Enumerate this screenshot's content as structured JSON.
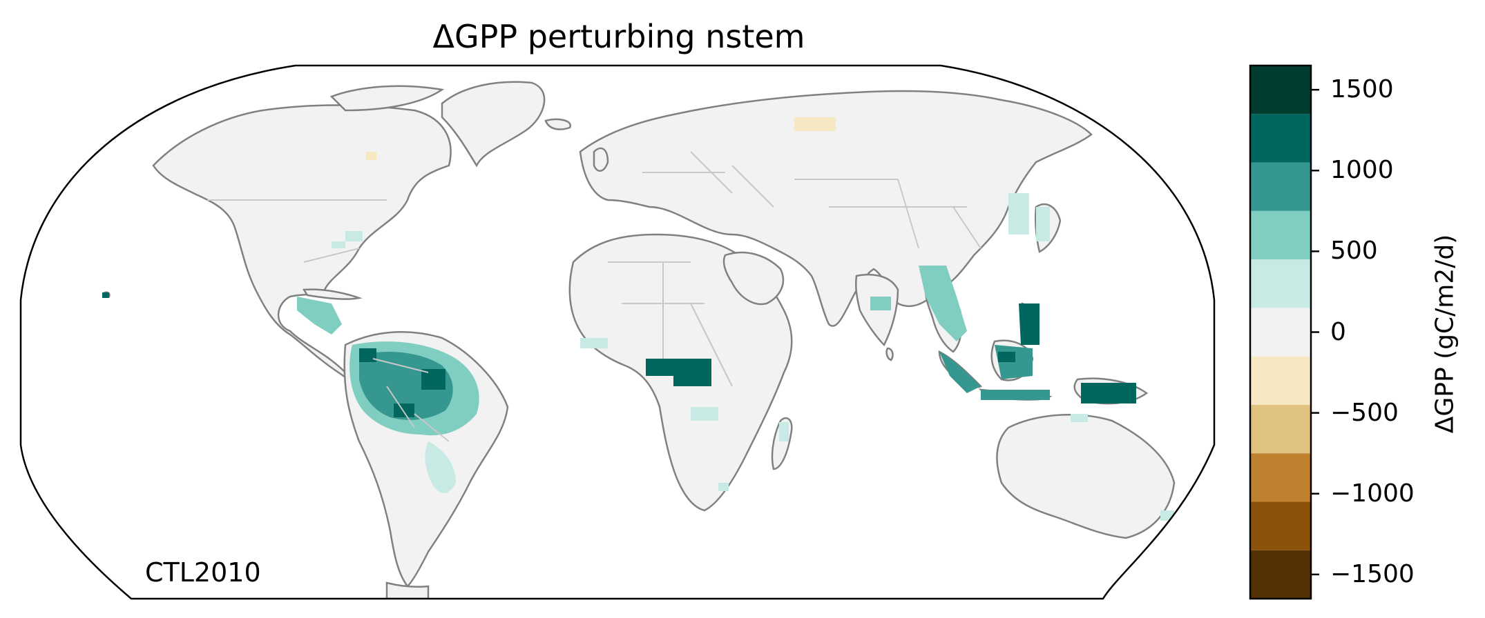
{
  "title": "ΔGPP perturbing nstem",
  "map_label": "CTL2010",
  "projection": "Robinson",
  "map": {
    "land_color": "#f2f2f2",
    "coastline_color": "#808080",
    "border_color": "#c8c8c8",
    "frame_color": "#000000"
  },
  "colorbar": {
    "label": "ΔGPP (gC/m2/d)",
    "range": [
      -1650,
      1650
    ],
    "levels": [
      {
        "from": -1650,
        "to": -1350,
        "color": "#543005"
      },
      {
        "from": -1350,
        "to": -1050,
        "color": "#8c510a"
      },
      {
        "from": -1050,
        "to": -750,
        "color": "#bf812d"
      },
      {
        "from": -750,
        "to": -450,
        "color": "#dfc27d"
      },
      {
        "from": -450,
        "to": -150,
        "color": "#f6e8c3"
      },
      {
        "from": -150,
        "to": 150,
        "color": "#f2f2f2"
      },
      {
        "from": 150,
        "to": 450,
        "color": "#c7eae5"
      },
      {
        "from": 450,
        "to": 750,
        "color": "#80cdc1"
      },
      {
        "from": 750,
        "to": 1050,
        "color": "#35978f"
      },
      {
        "from": 1050,
        "to": 1350,
        "color": "#01665e"
      },
      {
        "from": 1350,
        "to": 1650,
        "color": "#003c30"
      }
    ],
    "ticks": [
      {
        "value": 1500,
        "label": "1500"
      },
      {
        "value": 1000,
        "label": "1000"
      },
      {
        "value": 500,
        "label": "500"
      },
      {
        "value": 0,
        "label": "0"
      },
      {
        "value": -500,
        "label": "−500"
      },
      {
        "value": -1000,
        "label": "−1000"
      },
      {
        "value": -1500,
        "label": "−1500"
      }
    ]
  },
  "anomaly_regions": [
    {
      "region": "Amazon core",
      "value": 900
    },
    {
      "region": "Amazon dark patches",
      "value": 1200
    },
    {
      "region": "Amazon margins",
      "value": 600
    },
    {
      "region": "Central America",
      "value": 600
    },
    {
      "region": "Eastern Brazil",
      "value": 300
    },
    {
      "region": "Southeast USA",
      "value": 300
    },
    {
      "region": "Hawaii",
      "value": 1200
    },
    {
      "region": "Congo basin",
      "value": 1200
    },
    {
      "region": "West Africa coast",
      "value": 300
    },
    {
      "region": "East Africa",
      "value": 300
    },
    {
      "region": "Madagascar",
      "value": 300
    },
    {
      "region": "Southeast Asia",
      "value": 600
    },
    {
      "region": "Sumatra and Borneo",
      "value": 900
    },
    {
      "region": "Maritime islands dark",
      "value": 1200
    },
    {
      "region": "Papua New Guinea",
      "value": 1200
    },
    {
      "region": "East China and Japan",
      "value": 300
    },
    {
      "region": "Northern Australia coast",
      "value": 300
    },
    {
      "region": "Siberia",
      "value": -300
    },
    {
      "region": "Canada",
      "value": -300
    }
  ]
}
